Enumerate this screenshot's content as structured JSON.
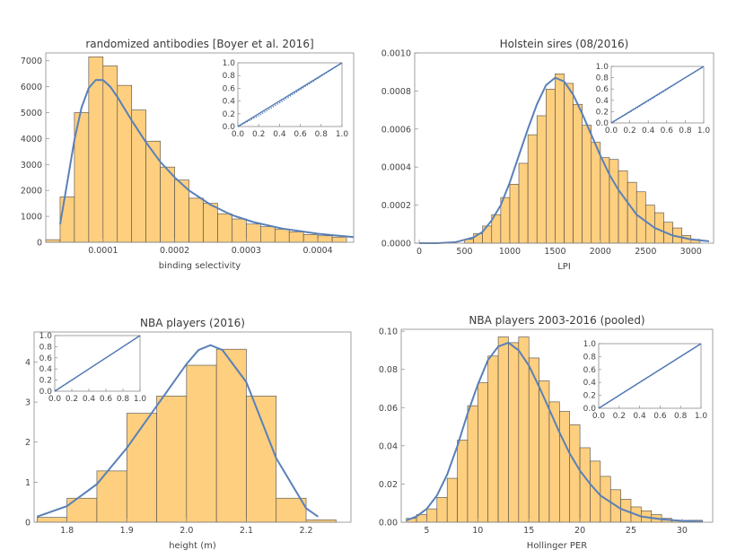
{
  "chart_data": [
    {
      "type": "bar",
      "title": "randomized antibodies [Boyer et al. 2016]",
      "xlabel": "binding selectivity",
      "ylabel": "",
      "xlim": [
        2e-05,
        0.00045
      ],
      "ylim": [
        0,
        7300
      ],
      "x_ticks": [
        "0.0001",
        "0.0002",
        "0.0003",
        "0.0004"
      ],
      "x_tick_values": [
        0.0001,
        0.0002,
        0.0003,
        0.0004
      ],
      "y_ticks": [
        "0",
        "1000",
        "2000",
        "3000",
        "4000",
        "5000",
        "6000",
        "7000"
      ],
      "y_tick_values": [
        0,
        1000,
        2000,
        3000,
        4000,
        5000,
        6000,
        7000
      ],
      "bin_width": 2e-05,
      "bin_starts": [
        2e-05,
        4e-05,
        6e-05,
        8e-05,
        0.0001,
        0.00012,
        0.00014,
        0.00016,
        0.00018,
        0.0002,
        0.00022,
        0.00024,
        0.00026,
        0.00028,
        0.0003,
        0.00032,
        0.00034,
        0.00036,
        0.00038,
        0.0004,
        0.00042
      ],
      "values": [
        100,
        1750,
        5000,
        7150,
        6800,
        6050,
        5100,
        3900,
        2900,
        2400,
        1700,
        1500,
        1100,
        900,
        700,
        600,
        500,
        400,
        300,
        250,
        200
      ],
      "fit_curve": {
        "x": [
          4e-05,
          5e-05,
          6e-05,
          7e-05,
          8e-05,
          9e-05,
          0.0001,
          0.00011,
          0.00012,
          0.00014,
          0.00016,
          0.00018,
          0.0002,
          0.00022,
          0.00025,
          0.00028,
          0.00031,
          0.00035,
          0.0004,
          0.00045
        ],
        "y": [
          700,
          2300,
          3950,
          5200,
          5950,
          6260,
          6250,
          6000,
          5600,
          4700,
          3850,
          3100,
          2500,
          2000,
          1450,
          1050,
          780,
          530,
          330,
          200
        ]
      },
      "inset": {
        "type": "line",
        "xlim": [
          0,
          1
        ],
        "ylim": [
          0,
          1
        ],
        "x_ticks": [
          "0.0",
          "0.2",
          "0.4",
          "0.6",
          "0.8",
          "1.0"
        ],
        "y_ticks": [
          "0.0",
          "0.2",
          "0.4",
          "0.6",
          "0.8",
          "1.0"
        ],
        "line": {
          "x": [
            0,
            0.5,
            1
          ],
          "y": [
            0,
            0.5,
            1
          ]
        },
        "dots": {
          "x": [
            0,
            0.2,
            0.4,
            0.6,
            0.8,
            1
          ],
          "y": [
            0,
            0.17,
            0.37,
            0.58,
            0.79,
            1
          ]
        }
      }
    },
    {
      "type": "bar",
      "title": "Holstein sires (08/2016)",
      "xlabel": "LPI",
      "ylabel": "",
      "xlim": [
        -50,
        3250
      ],
      "ylim": [
        0,
        0.001
      ],
      "x_ticks": [
        "0",
        "500",
        "1000",
        "1500",
        "2000",
        "2500",
        "3000"
      ],
      "x_tick_values": [
        0,
        500,
        1000,
        1500,
        2000,
        2500,
        3000
      ],
      "y_ticks": [
        "0.0000",
        "0.0002",
        "0.0004",
        "0.0006",
        "0.0008",
        "0.0010"
      ],
      "y_tick_values": [
        0,
        0.0002,
        0.0004,
        0.0006,
        0.0008,
        0.001
      ],
      "bin_width": 100,
      "bin_starts": [
        500,
        600,
        700,
        800,
        900,
        1000,
        1100,
        1200,
        1300,
        1400,
        1500,
        1600,
        1700,
        1800,
        1900,
        2000,
        2100,
        2200,
        2300,
        2400,
        2500,
        2600,
        2700,
        2800,
        2900,
        3000
      ],
      "values": [
        2e-05,
        5e-05,
        9e-05,
        0.00015,
        0.00024,
        0.00031,
        0.00042,
        0.00057,
        0.00067,
        0.00081,
        0.00089,
        0.00084,
        0.00073,
        0.00062,
        0.00053,
        0.00045,
        0.00044,
        0.00038,
        0.00032,
        0.00027,
        0.0002,
        0.00016,
        0.00011,
        8e-05,
        4e-05,
        2e-05
      ],
      "fit_curve": {
        "x": [
          0,
          200,
          400,
          600,
          700,
          800,
          900,
          1000,
          1100,
          1200,
          1300,
          1400,
          1500,
          1600,
          1700,
          1800,
          1900,
          2000,
          2100,
          2200,
          2400,
          2600,
          2800,
          3000,
          3200
        ],
        "y": [
          0,
          0,
          5e-06,
          3e-05,
          6e-05,
          0.00012,
          0.0002,
          0.00032,
          0.00046,
          0.0006,
          0.00073,
          0.00083,
          0.00087,
          0.00085,
          0.00078,
          0.00068,
          0.00057,
          0.00046,
          0.00036,
          0.00028,
          0.00015,
          8e-05,
          4e-05,
          2e-05,
          1e-05
        ]
      },
      "inset": {
        "type": "line",
        "xlim": [
          0,
          1
        ],
        "ylim": [
          0,
          1
        ],
        "x_ticks": [
          "0.0",
          "0.2",
          "0.4",
          "0.6",
          "0.8",
          "1.0"
        ],
        "y_ticks": [
          "0.0",
          "0.2",
          "0.4",
          "0.6",
          "0.8",
          "1.0"
        ],
        "line": {
          "x": [
            0,
            0.5,
            1
          ],
          "y": [
            0,
            0.5,
            1
          ]
        },
        "dots": {
          "x": [
            0,
            0.2,
            0.4,
            0.6,
            0.8,
            1
          ],
          "y": [
            0,
            0.19,
            0.39,
            0.59,
            0.8,
            1
          ]
        }
      }
    },
    {
      "type": "bar",
      "title": "NBA players (2016)",
      "xlabel": "height (m)",
      "ylabel": "",
      "xlim": [
        1.745,
        2.275
      ],
      "ylim": [
        0,
        4.75
      ],
      "x_ticks": [
        "1.8",
        "1.9",
        "2.0",
        "2.1",
        "2.2"
      ],
      "x_tick_values": [
        1.8,
        1.9,
        2.0,
        2.1,
        2.2
      ],
      "y_ticks": [
        "0",
        "1",
        "2",
        "3",
        "4"
      ],
      "y_tick_values": [
        0,
        1,
        2,
        3,
        4
      ],
      "bin_width": 0.05,
      "bin_starts": [
        1.75,
        1.8,
        1.85,
        1.9,
        1.95,
        2.0,
        2.05,
        2.1,
        2.15,
        2.2
      ],
      "values": [
        0.12,
        0.6,
        1.28,
        2.72,
        3.15,
        3.92,
        4.32,
        3.15,
        0.6,
        0.06
      ],
      "fit_curve": {
        "x": [
          1.75,
          1.8,
          1.85,
          1.9,
          1.95,
          2.0,
          2.02,
          2.04,
          2.06,
          2.1,
          2.15,
          2.2,
          2.22
        ],
        "y": [
          0.14,
          0.4,
          0.95,
          1.85,
          2.9,
          3.95,
          4.3,
          4.42,
          4.3,
          3.5,
          1.6,
          0.35,
          0.14
        ]
      },
      "inset": {
        "type": "line",
        "xlim": [
          0,
          1
        ],
        "ylim": [
          0,
          1
        ],
        "x_ticks": [
          "0.0",
          "0.2",
          "0.4",
          "0.6",
          "0.8",
          "1.0"
        ],
        "y_ticks": [
          "0.0",
          "0.2",
          "0.4",
          "0.6",
          "0.8",
          "1.0"
        ],
        "line": {
          "x": [
            0,
            1
          ],
          "y": [
            0,
            1
          ]
        },
        "dots": {
          "x": [
            0,
            0.2,
            0.4,
            0.6,
            0.8,
            1
          ],
          "y": [
            0,
            0.2,
            0.4,
            0.6,
            0.8,
            1
          ]
        }
      }
    },
    {
      "type": "bar",
      "title": "NBA players 2003-2016 (pooled)",
      "xlabel": "Hollinger PER",
      "ylabel": "",
      "xlim": [
        2.5,
        33
      ],
      "ylim": [
        0,
        0.101
      ],
      "x_ticks": [
        "5",
        "10",
        "15",
        "20",
        "25",
        "30"
      ],
      "x_tick_values": [
        5,
        10,
        15,
        20,
        25,
        30
      ],
      "y_ticks": [
        "0.00",
        "0.02",
        "0.04",
        "0.06",
        "0.08",
        "0.10"
      ],
      "y_tick_values": [
        0,
        0.02,
        0.04,
        0.06,
        0.08,
        0.1
      ],
      "bin_width": 1,
      "bin_starts": [
        3,
        4,
        5,
        6,
        7,
        8,
        9,
        10,
        11,
        12,
        13,
        14,
        15,
        16,
        17,
        18,
        19,
        20,
        21,
        22,
        23,
        24,
        25,
        26,
        27,
        28,
        29,
        30,
        31
      ],
      "values": [
        0.002,
        0.004,
        0.007,
        0.013,
        0.023,
        0.043,
        0.061,
        0.073,
        0.087,
        0.097,
        0.094,
        0.097,
        0.086,
        0.074,
        0.063,
        0.058,
        0.051,
        0.039,
        0.032,
        0.024,
        0.017,
        0.012,
        0.008,
        0.006,
        0.004,
        0.002,
        0.001,
        0.001,
        0.001
      ],
      "fit_curve": {
        "x": [
          3,
          4,
          5,
          6,
          7,
          8,
          9,
          10,
          11,
          12,
          13,
          14,
          15,
          16,
          17,
          18,
          19,
          20,
          21,
          22,
          24,
          26,
          28,
          30,
          32
        ],
        "y": [
          0.001,
          0.003,
          0.007,
          0.014,
          0.025,
          0.04,
          0.057,
          0.072,
          0.085,
          0.092,
          0.094,
          0.09,
          0.082,
          0.071,
          0.059,
          0.047,
          0.036,
          0.027,
          0.02,
          0.014,
          0.007,
          0.003,
          0.0015,
          0.0007,
          0.0003
        ]
      },
      "inset": {
        "type": "line",
        "xlim": [
          0,
          1
        ],
        "ylim": [
          0,
          1
        ],
        "x_ticks": [
          "0.0",
          "0.2",
          "0.4",
          "0.6",
          "0.8",
          "1.0"
        ],
        "y_ticks": [
          "0.0",
          "0.2",
          "0.4",
          "0.6",
          "0.8",
          "1.0"
        ],
        "line": {
          "x": [
            0,
            0.5,
            1
          ],
          "y": [
            0,
            0.5,
            1
          ]
        },
        "dots": {
          "x": [
            0,
            0.2,
            0.4,
            0.6,
            0.8,
            1
          ],
          "y": [
            0,
            0.2,
            0.4,
            0.6,
            0.8,
            1
          ]
        }
      }
    }
  ]
}
